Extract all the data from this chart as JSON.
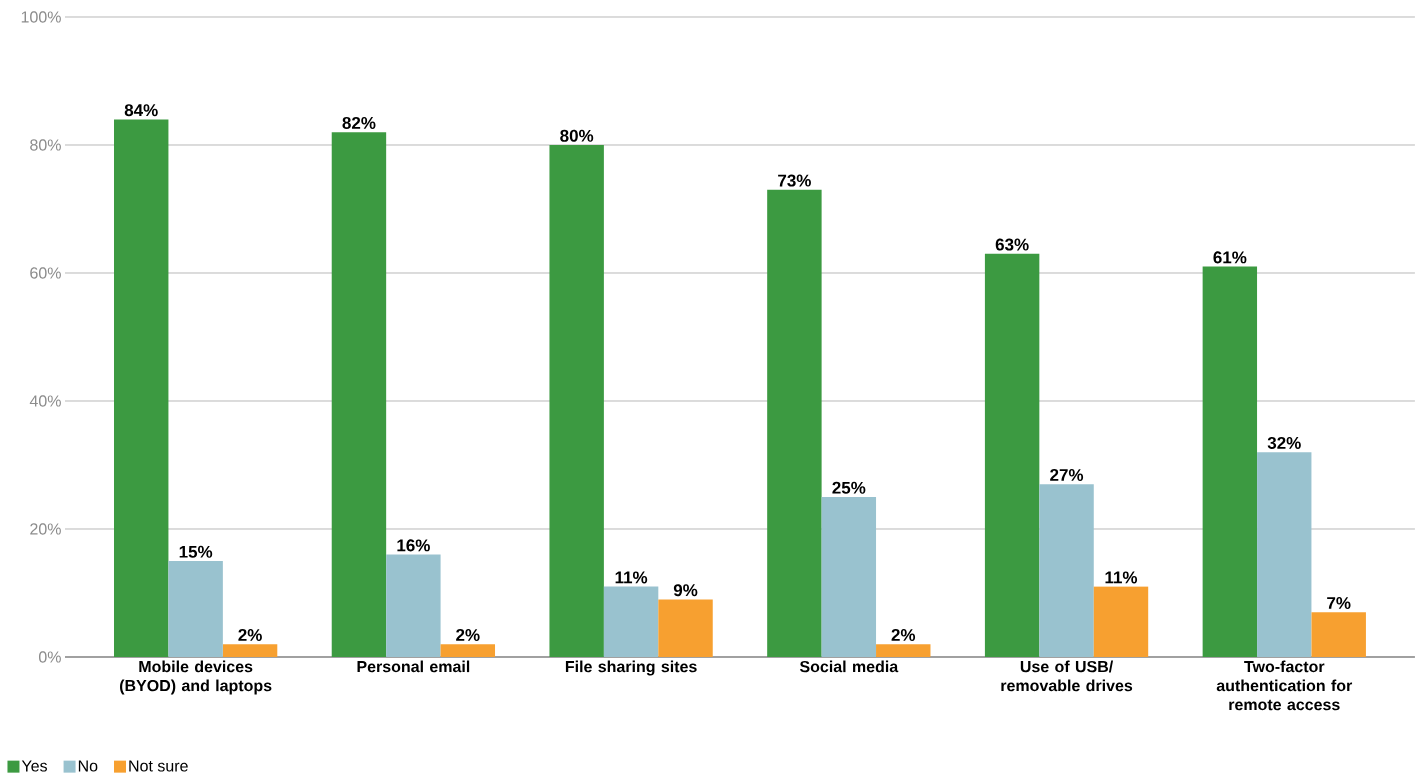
{
  "chart_data": {
    "type": "bar",
    "categories": [
      "Mobile devices (BYOD) and laptops",
      "Personal email",
      "File sharing sites",
      "Social media",
      "Use of USB/ removable drives",
      "Two-factor authentication for remote access"
    ],
    "series": [
      {
        "name": "Yes",
        "color": "#3c9a41",
        "values": [
          84,
          82,
          80,
          73,
          63,
          61
        ],
        "value_labels": [
          "84%",
          "82%",
          "80%",
          "73%",
          "63%",
          "61%"
        ]
      },
      {
        "name": "No",
        "color": "#99c2cf",
        "values": [
          15,
          16,
          11,
          25,
          27,
          32
        ],
        "value_labels": [
          "15%",
          "16%",
          "11%",
          "25%",
          "27%",
          "32%"
        ]
      },
      {
        "name": "Not sure",
        "color": "#f7a030",
        "values": [
          2,
          2,
          9,
          2,
          11,
          7
        ],
        "value_labels": [
          "2%",
          "2%",
          "9%",
          "2%",
          "11%",
          "7%"
        ]
      }
    ],
    "ylim": [
      0,
      100
    ],
    "yticks": [
      {
        "value": 0,
        "label": "0%"
      },
      {
        "value": 20,
        "label": "20%"
      },
      {
        "value": 40,
        "label": "40%"
      },
      {
        "value": 60,
        "label": "60%"
      },
      {
        "value": 80,
        "label": "80%"
      },
      {
        "value": 100,
        "label": "100%"
      }
    ],
    "grid": "y",
    "legend": "bottom left"
  }
}
